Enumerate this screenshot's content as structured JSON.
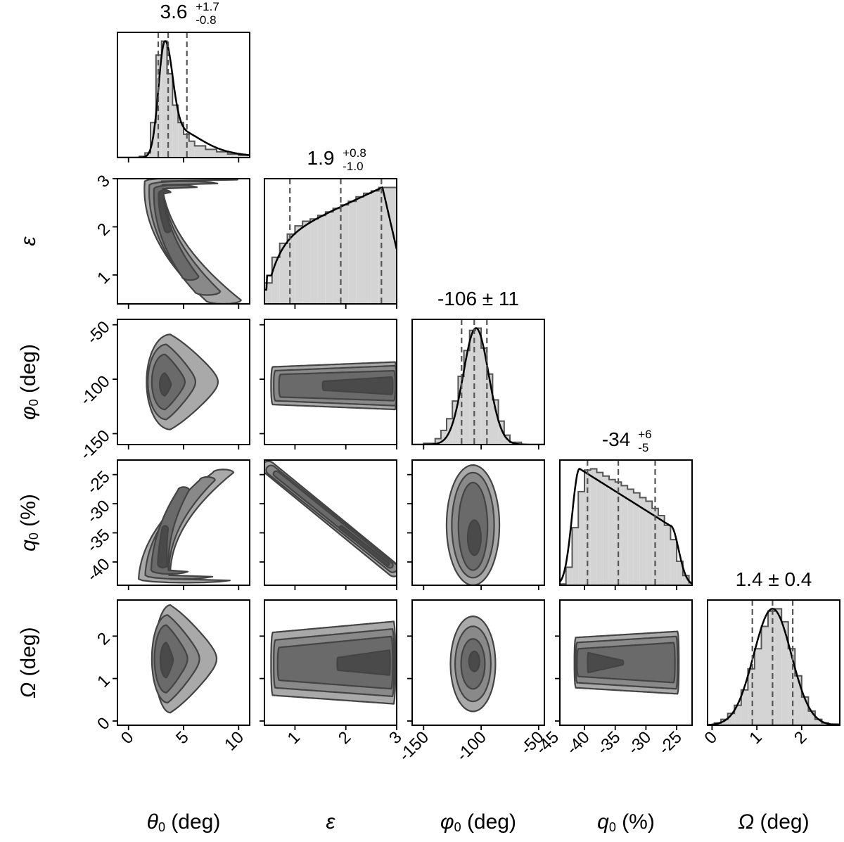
{
  "chart_data": {
    "type": "corner",
    "parameters": [
      {
        "id": "theta0",
        "symbol": "θ",
        "sub": "0",
        "unit": "(deg)",
        "range": [
          -1,
          11
        ],
        "ticks": [
          0,
          5,
          10
        ]
      },
      {
        "id": "epsilon",
        "symbol": "ε",
        "sub": "",
        "unit": "",
        "range": [
          0.4,
          3.0
        ],
        "ticks": [
          1,
          2,
          3
        ]
      },
      {
        "id": "phi0",
        "symbol": "φ",
        "sub": "0",
        "unit": "(deg)",
        "range": [
          -160,
          -45
        ],
        "ticks": [
          -150,
          -100,
          -50
        ]
      },
      {
        "id": "q0",
        "symbol": "q",
        "sub": "0",
        "unit": "(%)",
        "range": [
          -44,
          -22.5
        ],
        "ticks": [
          -45,
          -40,
          -35,
          -30,
          -25
        ]
      },
      {
        "id": "omega",
        "symbol": "Ω",
        "sub": "",
        "unit": "(deg)",
        "range": [
          -0.1,
          2.85
        ],
        "ticks": [
          0,
          1,
          2
        ]
      }
    ],
    "y_ticks": {
      "epsilon": [
        1,
        2,
        3
      ],
      "phi0": [
        -150,
        -100,
        -50
      ],
      "q0": [
        -40,
        -35,
        -30,
        -25
      ],
      "omega": [
        0,
        1,
        2
      ]
    },
    "titles": [
      {
        "param": "theta0",
        "value": "3.6",
        "plus": "+1.7",
        "minus": "-0.8"
      },
      {
        "param": "epsilon",
        "value": "1.9",
        "plus": "+0.8",
        "minus": "-1.0"
      },
      {
        "param": "phi0",
        "text": "-106 ± 11"
      },
      {
        "param": "q0",
        "value": "-34",
        "plus": "+6",
        "minus": "-5"
      },
      {
        "param": "omega",
        "text": "1.4 ± 0.4"
      }
    ],
    "quantiles": {
      "theta0": [
        2.7,
        3.6,
        5.3
      ],
      "epsilon": [
        0.9,
        1.9,
        2.7
      ],
      "phi0": [
        -117,
        -106,
        -95
      ],
      "q0": [
        -39.5,
        -34.5,
        -28.5
      ],
      "omega": [
        0.9,
        1.35,
        1.8
      ]
    },
    "histograms": {
      "theta0": {
        "bins": [
          -1,
          0,
          1,
          1.5,
          2,
          2.5,
          3,
          3.5,
          4,
          4.5,
          5,
          5.5,
          6,
          7,
          8,
          9,
          10,
          11
        ],
        "counts": [
          0,
          0,
          0.01,
          0.04,
          0.3,
          0.88,
          1.0,
          0.72,
          0.45,
          0.3,
          0.2,
          0.14,
          0.1,
          0.07,
          0.05,
          0.03,
          0.02
        ]
      },
      "epsilon": {
        "bins": [
          0.4,
          0.55,
          0.7,
          0.85,
          1.0,
          1.15,
          1.3,
          1.45,
          1.6,
          1.75,
          1.9,
          2.05,
          2.2,
          2.35,
          2.5,
          2.65,
          2.8,
          3.0
        ],
        "counts": [
          0.18,
          0.4,
          0.52,
          0.6,
          0.67,
          0.71,
          0.73,
          0.76,
          0.79,
          0.82,
          0.85,
          0.88,
          0.92,
          0.95,
          0.97,
          1.0,
          1.0
        ]
      },
      "phi0": {
        "bins": [
          -160,
          -150,
          -140,
          -135,
          -130,
          -125,
          -120,
          -115,
          -110,
          -105,
          -100,
          -95,
          -90,
          -85,
          -80,
          -75,
          -65,
          -45
        ],
        "counts": [
          0,
          0.01,
          0.05,
          0.12,
          0.22,
          0.37,
          0.58,
          0.8,
          0.97,
          0.99,
          0.82,
          0.6,
          0.38,
          0.2,
          0.08,
          0.02,
          0
        ]
      },
      "q0": {
        "bins": [
          -44,
          -43,
          -42,
          -41,
          -40,
          -39,
          -38,
          -37,
          -36,
          -35,
          -34,
          -33,
          -32,
          -31,
          -30,
          -29,
          -28,
          -27,
          -26,
          -25,
          -24,
          -23,
          -22.5
        ],
        "counts": [
          0.01,
          0.15,
          0.48,
          0.78,
          0.96,
          0.97,
          0.94,
          0.91,
          0.88,
          0.86,
          0.83,
          0.8,
          0.77,
          0.73,
          0.7,
          0.64,
          0.58,
          0.5,
          0.38,
          0.2,
          0.08,
          0.02
        ]
      },
      "omega": {
        "bins": [
          -0.1,
          0.05,
          0.2,
          0.35,
          0.5,
          0.65,
          0.8,
          0.95,
          1.1,
          1.25,
          1.4,
          1.55,
          1.7,
          1.85,
          2.0,
          2.15,
          2.3,
          2.45,
          2.6,
          2.85
        ],
        "counts": [
          0,
          0.02,
          0.05,
          0.1,
          0.17,
          0.3,
          0.48,
          0.65,
          0.84,
          0.97,
          0.99,
          0.88,
          0.65,
          0.42,
          0.24,
          0.12,
          0.05,
          0.02,
          0.01
        ]
      }
    },
    "contour_colors": [
      "#a9a9a9",
      "#898989",
      "#6a6a6a",
      "#4a4a4a"
    ],
    "hist_fill": "#d4d4d4",
    "line_color": "#000000",
    "grid": false
  }
}
